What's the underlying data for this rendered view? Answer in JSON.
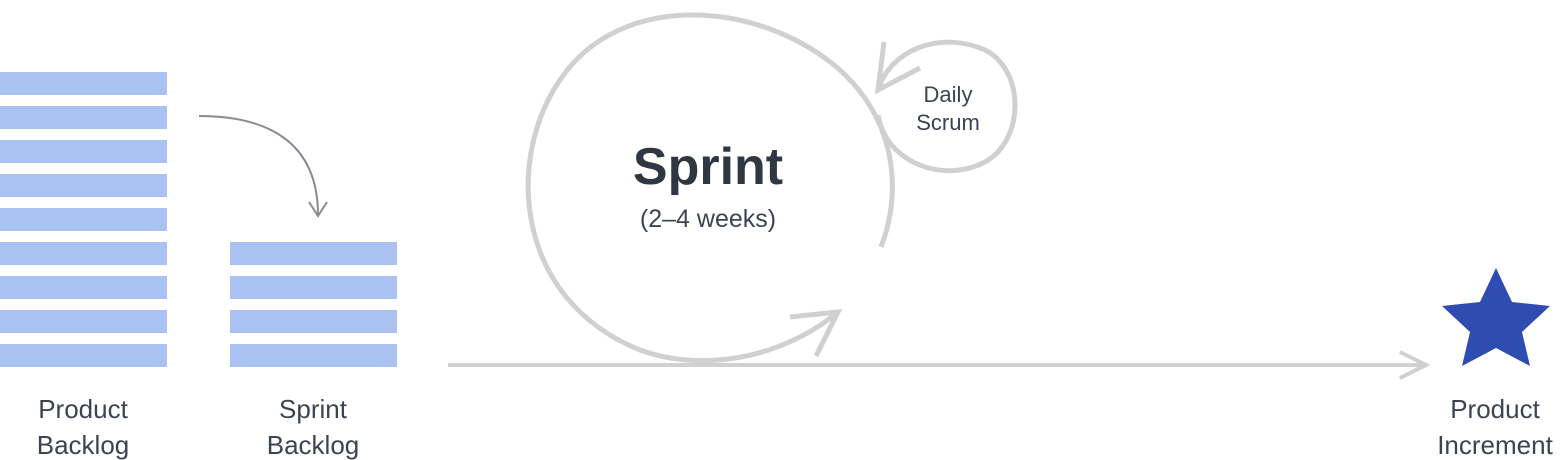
{
  "product_backlog": {
    "label_line1": "Product",
    "label_line2": "Backlog",
    "item_count": 9
  },
  "sprint_backlog": {
    "label_line1": "Sprint",
    "label_line2": "Backlog",
    "item_count": 4
  },
  "sprint": {
    "title": "Sprint",
    "duration": "(2–4 weeks)"
  },
  "daily_scrum": {
    "label_line1": "Daily",
    "label_line2": "Scrum"
  },
  "product_increment": {
    "label_line1": "Product",
    "label_line2": "Increment",
    "icon": "star-icon"
  },
  "colors": {
    "backlog_bar": "#a9c2f2",
    "cycle_stroke": "#d0d0d0",
    "flow_arrow": "#8a8a96",
    "star": "#2f4db0",
    "text": "#3c4453"
  }
}
